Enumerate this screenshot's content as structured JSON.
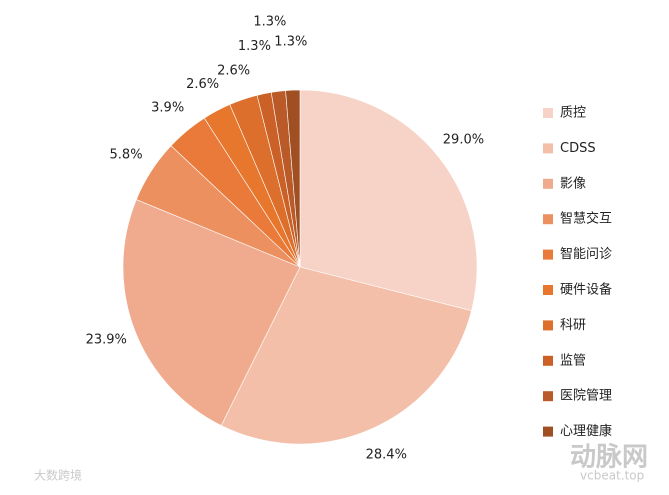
{
  "chart_data": {
    "type": "pie",
    "categories": [
      "质控",
      "CDSS",
      "影像",
      "智慧交互",
      "智能问诊",
      "硬件设备",
      "科研",
      "监管",
      "医院管理",
      "心理健康"
    ],
    "values": [
      29.0,
      28.4,
      23.9,
      5.8,
      3.9,
      2.6,
      2.6,
      1.3,
      1.3,
      1.3
    ],
    "value_labels": [
      "29.0%",
      "28.4%",
      "23.9%",
      "5.8%",
      "3.9%",
      "2.6%",
      "2.6%",
      "1.3%",
      "1.3%",
      "1.3%"
    ],
    "colors": [
      "#f7d3c7",
      "#f4bfa9",
      "#f0ab8e",
      "#ec9060",
      "#e97a3a",
      "#e8772e",
      "#dc6f2b",
      "#cc6127",
      "#b95a28",
      "#a04f22"
    ],
    "legend": "right",
    "annotations": [
      "动脉网",
      "vcbeat.top",
      "大数跨境"
    ]
  }
}
